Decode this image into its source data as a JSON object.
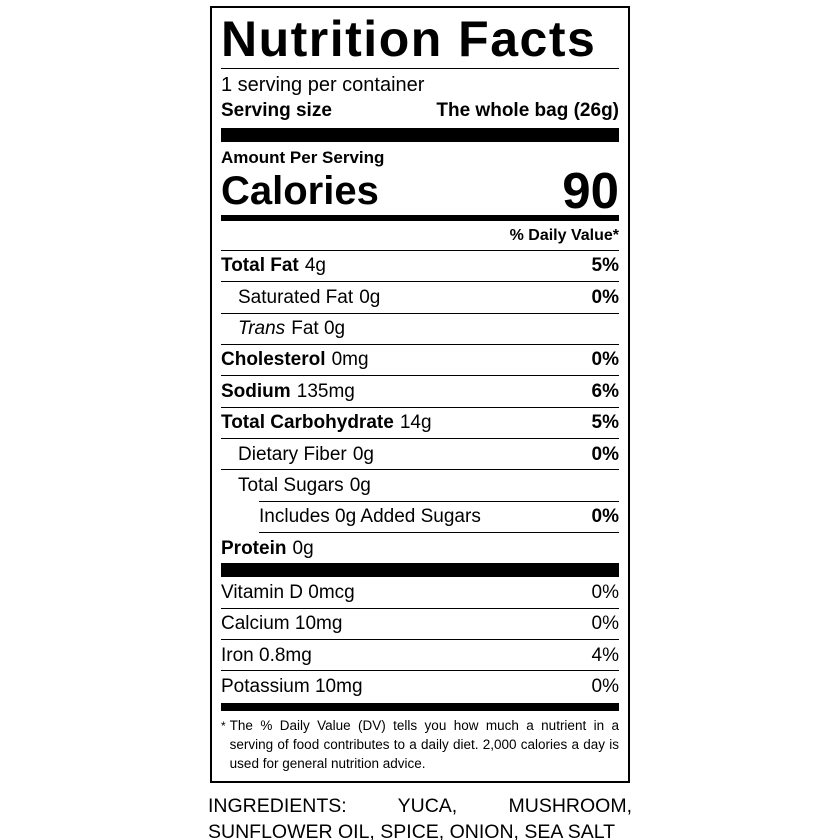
{
  "label": {
    "title": "Nutrition Facts",
    "servings_per_container": "1 serving per container",
    "serving_size_label": "Serving size",
    "serving_size_value": "The whole bag (26g)",
    "amount_per_serving": "Amount Per Serving",
    "calories_label": "Calories",
    "calories_value": "90",
    "daily_value_header": "% Daily Value*",
    "nutrients": [
      {
        "name": "Total Fat",
        "amount": "4g",
        "dv": "5%"
      },
      {
        "name": "Saturated Fat",
        "amount": "0g",
        "dv": "0%"
      },
      {
        "name": "Trans",
        "amount": "Fat 0g",
        "dv": ""
      },
      {
        "name": "Cholesterol",
        "amount": "0mg",
        "dv": "0%"
      },
      {
        "name": "Sodium",
        "amount": "135mg",
        "dv": "6%"
      },
      {
        "name": "Total Carbohydrate",
        "amount": "14g",
        "dv": "5%"
      },
      {
        "name": "Dietary Fiber",
        "amount": "0g",
        "dv": "0%"
      },
      {
        "name": "Total Sugars",
        "amount": "0g",
        "dv": ""
      },
      {
        "name": "Includes 0g Added Sugars",
        "amount": "",
        "dv": "0%"
      },
      {
        "name": "Protein",
        "amount": "0g",
        "dv": ""
      }
    ],
    "vitamins": [
      {
        "name": "Vitamin D 0mcg",
        "dv": "0%"
      },
      {
        "name": "Calcium 10mg",
        "dv": "0%"
      },
      {
        "name": "Iron 0.8mg",
        "dv": "4%"
      },
      {
        "name": "Potassium 10mg",
        "dv": "0%"
      }
    ],
    "footnote_star": "*",
    "footnote_text": "The % Daily Value (DV) tells you how much a nutrient in a serving of food contributes to a daily diet. 2,000 calories a day is used for general nutrition advice."
  },
  "ingredients_text": "INGREDIENTS: YUCA, MUSHROOM, SUNFLOWER OIL, SPICE, ONION, SEA SALT",
  "colors": {
    "text": "#000000",
    "background": "#ffffff"
  }
}
